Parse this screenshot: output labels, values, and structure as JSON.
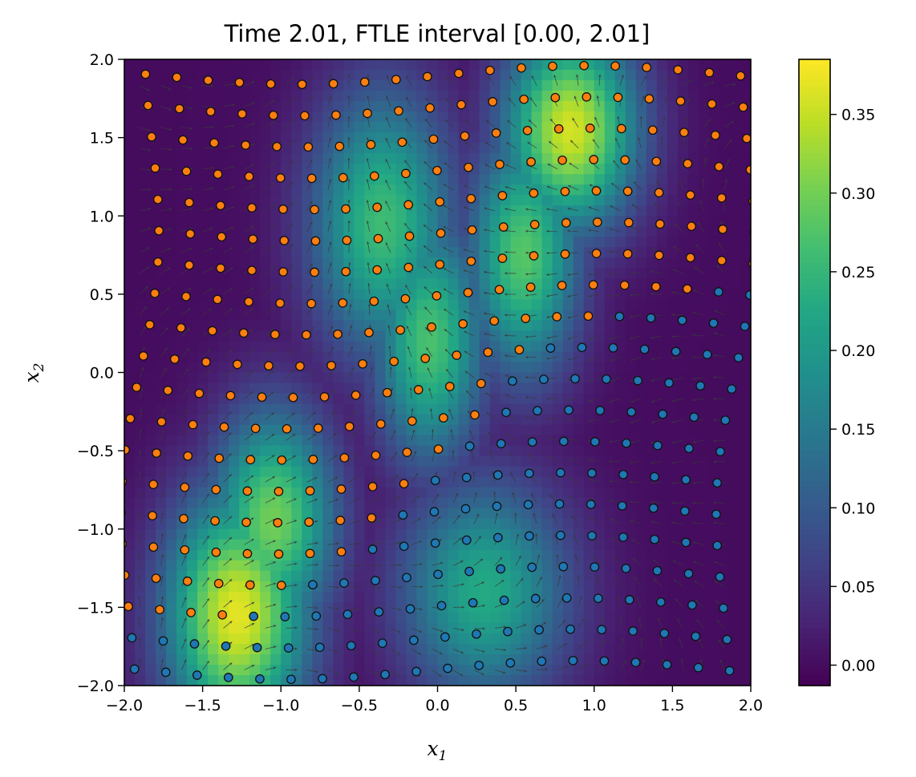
{
  "chart_data": {
    "type": "heatmap",
    "title": "Time 2.01, FTLE interval [0.00, 2.01]",
    "xlabel": "x",
    "xlabel_sub": "1",
    "ylabel": "x",
    "ylabel_sub": "2",
    "xlim": [
      -2.0,
      2.0
    ],
    "ylim": [
      -2.0,
      2.0
    ],
    "x_ticks": [
      -2.0,
      -1.5,
      -1.0,
      -0.5,
      0.0,
      0.5,
      1.0,
      1.5,
      2.0
    ],
    "x_tick_labels": [
      "−2.0",
      "−1.5",
      "−1.0",
      "−0.5",
      "0.0",
      "0.5",
      "1.0",
      "1.5",
      "2.0"
    ],
    "y_ticks": [
      -2.0,
      -1.5,
      -1.0,
      -0.5,
      0.0,
      0.5,
      1.0,
      1.5,
      2.0
    ],
    "y_tick_labels": [
      "−2.0",
      "−1.5",
      "−1.0",
      "−0.5",
      "0.0",
      "0.5",
      "1.0",
      "1.5",
      "2.0"
    ],
    "colormap": "viridis",
    "colorbar": {
      "vmin": -0.013,
      "vmax": 0.385,
      "ticks": [
        0.0,
        0.05,
        0.1,
        0.15,
        0.2,
        0.25,
        0.3,
        0.35
      ],
      "tick_labels": [
        "0.00",
        "0.05",
        "0.10",
        "0.15",
        "0.20",
        "0.25",
        "0.30",
        "0.35"
      ]
    },
    "ftle_ridges": [
      {
        "x": -1.28,
        "y": -1.55,
        "value": 0.37,
        "sx": 0.32,
        "sy": 0.55
      },
      {
        "x": -1.05,
        "y": -0.95,
        "value": 0.3,
        "sx": 0.28,
        "sy": 0.5
      },
      {
        "x": -0.35,
        "y": 0.95,
        "value": 0.26,
        "sx": 0.32,
        "sy": 0.6
      },
      {
        "x": -0.05,
        "y": 0.2,
        "value": 0.27,
        "sx": 0.25,
        "sy": 0.55
      },
      {
        "x": 0.85,
        "y": 1.55,
        "value": 0.36,
        "sx": 0.3,
        "sy": 0.45
      },
      {
        "x": 0.55,
        "y": 0.75,
        "value": 0.28,
        "sx": 0.25,
        "sy": 0.55
      },
      {
        "x": 0.3,
        "y": -1.4,
        "value": 0.23,
        "sx": 0.38,
        "sy": 0.5
      }
    ],
    "particle_colors": {
      "orange": "#ff7f0e",
      "blue": "#1f77b4"
    },
    "particle_grid": {
      "spacing": 0.2,
      "x_range": [
        -1.9,
        1.9
      ],
      "y_range": [
        -1.9,
        1.9
      ]
    },
    "quiver_color": "#3a3a3a"
  }
}
